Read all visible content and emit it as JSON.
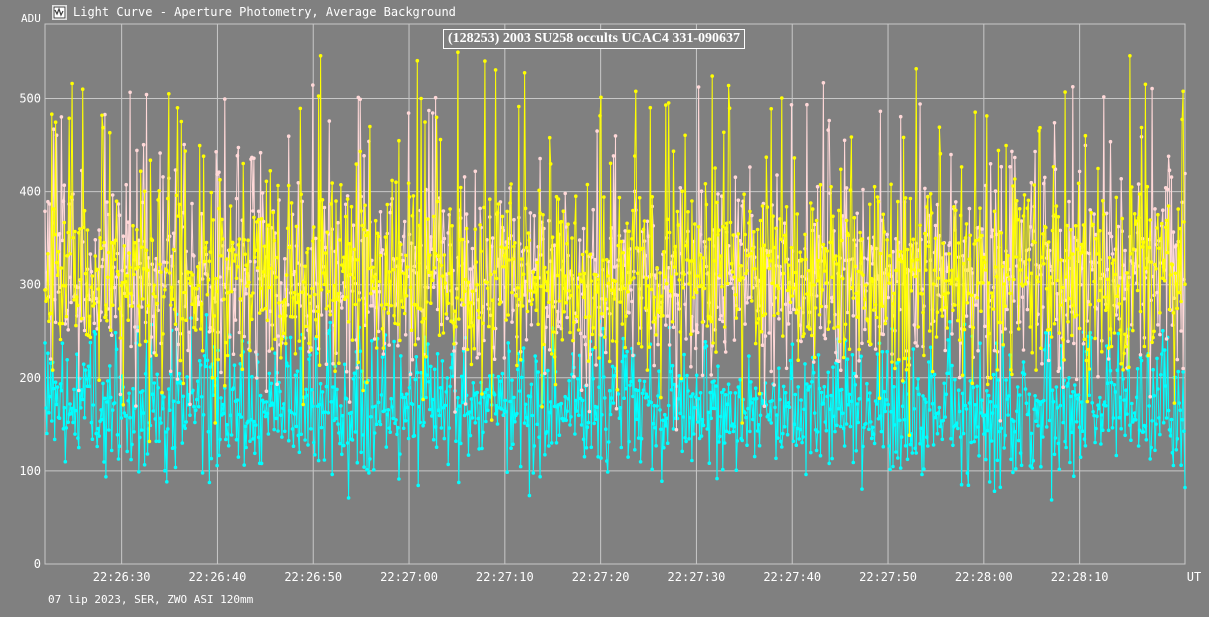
{
  "window": {
    "title": "Light Curve - Aperture Photometry, Average Background",
    "icon": "light-curve-app-icon"
  },
  "footer": "07 lip 2023, SER, ZWO ASI 120mm",
  "colors": {
    "background": "#808080",
    "grid": "#c8c8c8",
    "series_target": "#ffff00",
    "series_comparison": "#ffd8d8",
    "series_background": "#00ffff"
  },
  "chart_data": {
    "type": "line",
    "title": "(128253) 2003 SU258 occults UCAC4 331-090637",
    "ylabel": "ADU",
    "xlabel": "UT",
    "ylim": [
      0,
      580
    ],
    "yticks": [
      0,
      100,
      200,
      300,
      400,
      500
    ],
    "xlim_seconds": [
      "22:26:22.0",
      "22:28:21.0"
    ],
    "xticks": [
      "22:26:30",
      "22:26:40",
      "22:26:50",
      "22:27:00",
      "22:27:10",
      "22:27:20",
      "22:27:30",
      "22:27:40",
      "22:27:50",
      "22:28:00",
      "22:28:10"
    ],
    "grid": true,
    "markers": true,
    "series": [
      {
        "key": "yellow",
        "color": "#ffff00",
        "mean": 310,
        "spread": 75,
        "peaks": 550
      },
      {
        "key": "pink",
        "color": "#ffd8d8",
        "mean": 305,
        "spread": 70,
        "peaks": 520
      },
      {
        "key": "cyan",
        "color": "#00ffff",
        "mean": 165,
        "spread": 45,
        "peaks": 260
      }
    ]
  }
}
